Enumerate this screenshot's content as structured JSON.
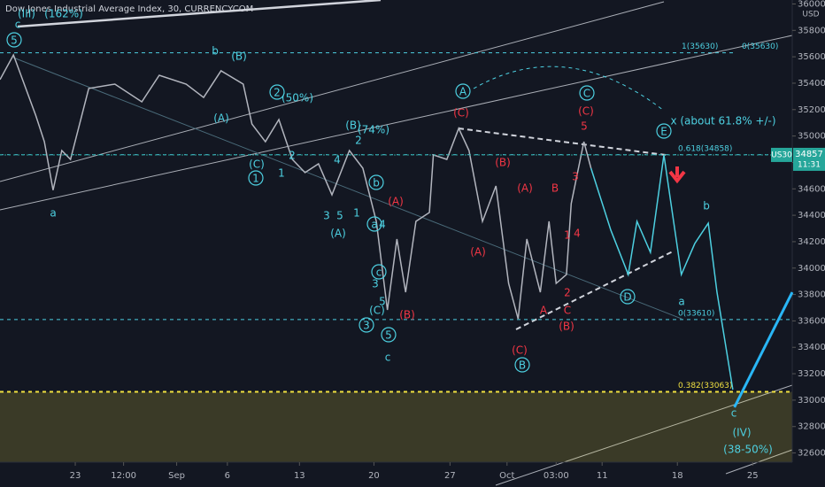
{
  "chart_data": {
    "type": "line",
    "title": "Dow Jones Industrial Average Index, 30, CURRENCYCOM",
    "currency": "USD",
    "xlim": [
      0,
      100
    ],
    "xticks": [
      {
        "value": 9.5,
        "label": "23"
      },
      {
        "value": 15.6,
        "label": "12:00"
      },
      {
        "value": 22.3,
        "label": "Sep"
      },
      {
        "value": 28.7,
        "label": "6"
      },
      {
        "value": 37.8,
        "label": "13"
      },
      {
        "value": 47.2,
        "label": "20"
      },
      {
        "value": 56.8,
        "label": "27"
      },
      {
        "value": 64.0,
        "label": "Oct"
      },
      {
        "value": 70.2,
        "label": "03:00"
      },
      {
        "value": 76.0,
        "label": "11"
      },
      {
        "value": 85.5,
        "label": "18"
      },
      {
        "value": 95.0,
        "label": "25"
      }
    ],
    "ylim": [
      32530,
      36030
    ],
    "yticks": [
      32600,
      32800,
      33000,
      33200,
      33400,
      33600,
      33800,
      34000,
      34200,
      34400,
      34600,
      34800,
      35000,
      35200,
      35400,
      35600,
      35800,
      36000
    ],
    "x": [
      0,
      1.7,
      4.5,
      5.6,
      6.7,
      7.8,
      8.9,
      11.2,
      14.5,
      17.9,
      20.1,
      23.5,
      25.7,
      27.9,
      30.7,
      31.8,
      33.5,
      35.2,
      36.9,
      38.5,
      40.2,
      41.9,
      44.1,
      45.8,
      47.5,
      48.9,
      50.1,
      51.2,
      52.5,
      54.2,
      54.7,
      56.4,
      57.9,
      59.2,
      60.9,
      62.6,
      64.2,
      65.4,
      66.5,
      68.2,
      69.3,
      70.2,
      71.5,
      72.1,
      73.7,
      74.6,
      77.1,
      79.3,
      80.4,
      82.1,
      83.8,
      86.0,
      87.7,
      89.4,
      90.5,
      92.5,
      92.7,
      100
    ],
    "series": [
      {
        "color": "#b2b5be",
        "values": [
          35427,
          35614,
          35158,
          34957,
          34590,
          34890,
          34823,
          35360,
          35393,
          35259,
          35460,
          35393,
          35292,
          35494,
          35393,
          35091,
          34957,
          35125,
          34823,
          34723,
          34790,
          34555,
          34890,
          34756,
          34354,
          33683,
          34220,
          33817,
          34354,
          34421,
          34857,
          34823,
          35058,
          34890,
          34354,
          34622,
          33884,
          33616,
          34220,
          33817,
          34354,
          33884,
          33951,
          34488,
          34957,
          34756,
          null,
          null,
          null,
          null,
          null,
          null,
          null,
          null,
          null,
          null,
          null,
          null
        ]
      },
      {
        "color": "#4dd0e1",
        "values": [
          null,
          null,
          null,
          null,
          null,
          null,
          null,
          null,
          null,
          null,
          null,
          null,
          null,
          null,
          null,
          null,
          null,
          null,
          null,
          null,
          null,
          null,
          null,
          null,
          null,
          null,
          null,
          null,
          null,
          null,
          null,
          null,
          null,
          null,
          null,
          null,
          null,
          null,
          null,
          null,
          null,
          null,
          null,
          null,
          null,
          34756,
          34287,
          33951,
          34354,
          34119,
          34857,
          33951,
          34186,
          34340,
          33817,
          33080,
          null,
          null
        ]
      },
      {
        "color": "#29b6f6",
        "values": [
          null,
          null,
          null,
          null,
          null,
          null,
          null,
          null,
          null,
          null,
          null,
          null,
          null,
          null,
          null,
          null,
          null,
          null,
          null,
          null,
          null,
          null,
          null,
          null,
          null,
          null,
          null,
          null,
          null,
          null,
          null,
          null,
          null,
          null,
          null,
          null,
          null,
          null,
          null,
          null,
          null,
          null,
          null,
          null,
          null,
          null,
          null,
          null,
          null,
          null,
          null,
          null,
          null,
          null,
          null,
          null,
          32946,
          33817
        ]
      }
    ],
    "levels": [
      {
        "value": 35630,
        "labels": [
          "1(35630)",
          "0(35630)"
        ],
        "color": "#4dd0e1"
      },
      {
        "value": 34858,
        "labels": [
          "0.618(34858)"
        ],
        "color": "#4dd0e1"
      },
      {
        "value": 33610,
        "labels": [
          "0(33610)"
        ],
        "color": "#4dd0e1"
      },
      {
        "value": 33063,
        "labels": [
          "0.382(33063)"
        ],
        "color": "#f0e040"
      }
    ],
    "last_price": {
      "symbol": "US30",
      "value": 34857,
      "time": "11:31"
    },
    "annotations": [
      "(III)",
      "(162%)",
      "c",
      "5",
      "a",
      "b",
      "(B)",
      "(A)",
      "2",
      "(50%)",
      "2",
      "(C)",
      "1",
      "1",
      "4",
      "(B)",
      "2",
      "(74%)",
      "b",
      "a",
      "4",
      "1",
      "3",
      "5",
      "(A)",
      "c",
      "3",
      "5",
      "(C)",
      "3",
      "5",
      "c",
      "A",
      "C",
      "E",
      "x (about 61.8% +/-)",
      "D",
      "B",
      "b",
      "a",
      "c",
      "(IV)",
      "(38-50%)",
      "(A)",
      "(B)",
      "(C)",
      "(B)",
      "(A)",
      "(C)",
      "(A)",
      "B",
      "3",
      "4",
      "1",
      "2",
      "C",
      "A",
      "(B)",
      "5",
      "(C)"
    ]
  }
}
